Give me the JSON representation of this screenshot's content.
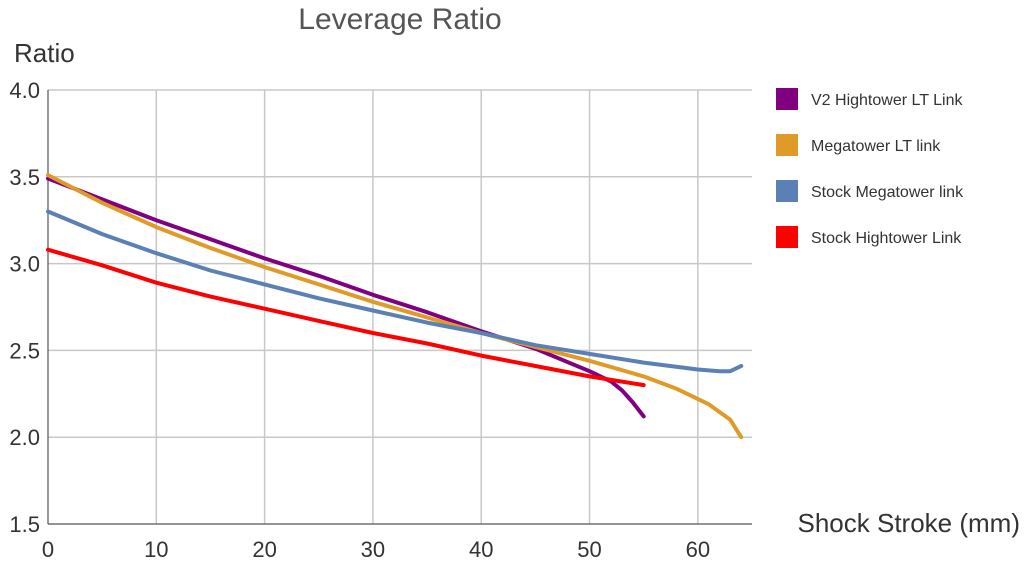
{
  "chart_data": {
    "type": "line",
    "title": "Leverage Ratio",
    "xlabel": "Shock Stroke (mm)",
    "ylabel": "Ratio",
    "xlim": [
      0,
      65
    ],
    "ylim": [
      1.5,
      4.0
    ],
    "xticks": [
      0,
      10,
      20,
      30,
      40,
      50,
      60
    ],
    "yticks": [
      1.5,
      2.0,
      2.5,
      3.0,
      3.5,
      4.0
    ],
    "xtick_labels": [
      "0",
      "10",
      "20",
      "30",
      "40",
      "50",
      "60"
    ],
    "ytick_labels": [
      "1.5",
      "2.0",
      "2.5",
      "3.0",
      "3.5",
      "4.0"
    ],
    "grid": true,
    "legend_position": "right",
    "series": [
      {
        "name": "V2 Hightower LT Link",
        "color": "#800080",
        "points": [
          [
            0,
            3.49
          ],
          [
            5,
            3.37
          ],
          [
            10,
            3.25
          ],
          [
            15,
            3.14
          ],
          [
            20,
            3.03
          ],
          [
            25,
            2.93
          ],
          [
            30,
            2.82
          ],
          [
            35,
            2.72
          ],
          [
            40,
            2.61
          ],
          [
            45,
            2.51
          ],
          [
            50,
            2.38
          ],
          [
            52,
            2.32
          ],
          [
            53,
            2.27
          ],
          [
            54,
            2.2
          ],
          [
            55,
            2.12
          ]
        ]
      },
      {
        "name": "Megatower LT link",
        "color": "#E09A28",
        "points": [
          [
            0,
            3.51
          ],
          [
            5,
            3.35
          ],
          [
            10,
            3.21
          ],
          [
            15,
            3.09
          ],
          [
            20,
            2.98
          ],
          [
            25,
            2.88
          ],
          [
            30,
            2.78
          ],
          [
            35,
            2.69
          ],
          [
            40,
            2.6
          ],
          [
            45,
            2.52
          ],
          [
            50,
            2.44
          ],
          [
            55,
            2.35
          ],
          [
            58,
            2.28
          ],
          [
            61,
            2.19
          ],
          [
            63,
            2.1
          ],
          [
            64,
            2.0
          ]
        ]
      },
      {
        "name": "Stock Megatower link",
        "color": "#5B80B5",
        "points": [
          [
            0,
            3.3
          ],
          [
            5,
            3.17
          ],
          [
            10,
            3.06
          ],
          [
            15,
            2.96
          ],
          [
            20,
            2.88
          ],
          [
            25,
            2.8
          ],
          [
            30,
            2.73
          ],
          [
            35,
            2.66
          ],
          [
            40,
            2.6
          ],
          [
            45,
            2.53
          ],
          [
            50,
            2.48
          ],
          [
            55,
            2.43
          ],
          [
            60,
            2.39
          ],
          [
            62,
            2.38
          ],
          [
            63,
            2.38
          ],
          [
            64,
            2.41
          ]
        ]
      },
      {
        "name": "Stock Hightower Link",
        "color": "#FF0000",
        "points": [
          [
            0,
            3.08
          ],
          [
            5,
            2.99
          ],
          [
            10,
            2.89
          ],
          [
            15,
            2.81
          ],
          [
            20,
            2.74
          ],
          [
            25,
            2.67
          ],
          [
            30,
            2.6
          ],
          [
            35,
            2.54
          ],
          [
            40,
            2.47
          ],
          [
            45,
            2.41
          ],
          [
            50,
            2.35
          ],
          [
            55,
            2.3
          ]
        ]
      }
    ]
  }
}
